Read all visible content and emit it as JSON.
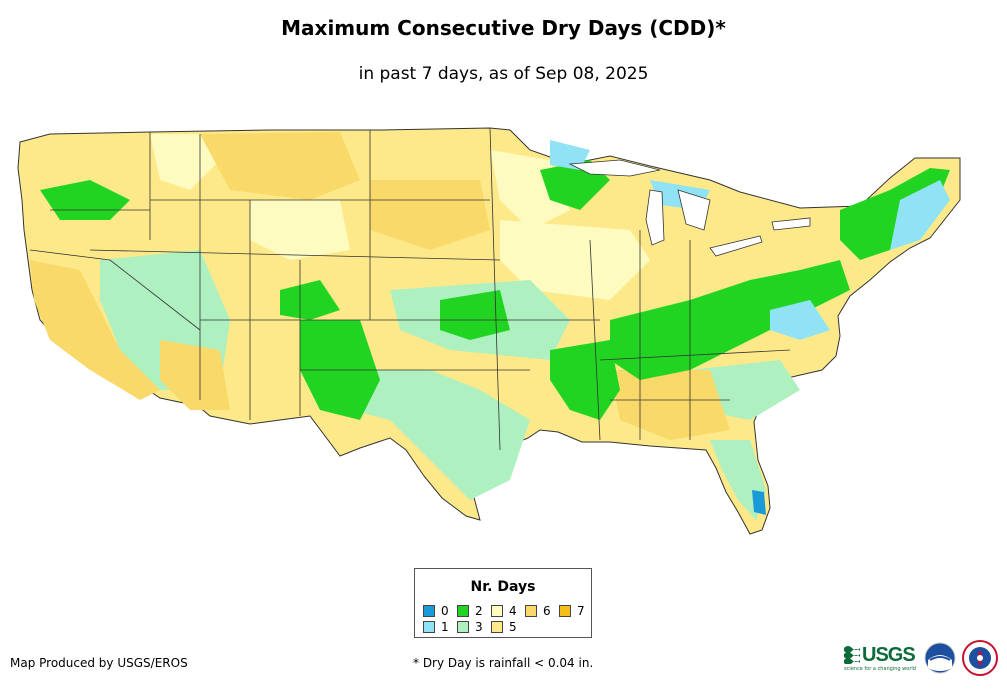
{
  "title": "Maximum Consecutive Dry Days (CDD)*",
  "subtitle": "in past 7 days, as of Sep 08, 2025",
  "legend": {
    "title": "Nr. Days",
    "items": [
      {
        "label": "0",
        "color": "#1a9ad6"
      },
      {
        "label": "1",
        "color": "#8fe3f5"
      },
      {
        "label": "2",
        "color": "#22d422"
      },
      {
        "label": "3",
        "color": "#aef0c0"
      },
      {
        "label": "4",
        "color": "#fdfbc0"
      },
      {
        "label": "5",
        "color": "#fde98a"
      },
      {
        "label": "6",
        "color": "#f8d969"
      },
      {
        "label": "7",
        "color": "#f5bf1a"
      }
    ]
  },
  "credit": "Map Produced by USGS/EROS",
  "footnote": "* Dry Day is rainfall < 0.04 in.",
  "logos": {
    "usgs": "USGS",
    "usgs_tagline": "science for a changing world",
    "noaa": "noaa-logo",
    "nws": "nws-logo"
  },
  "map": {
    "region": "Contiguous United States",
    "colors": {
      "water": "#ffffff",
      "border": "#333333"
    }
  }
}
